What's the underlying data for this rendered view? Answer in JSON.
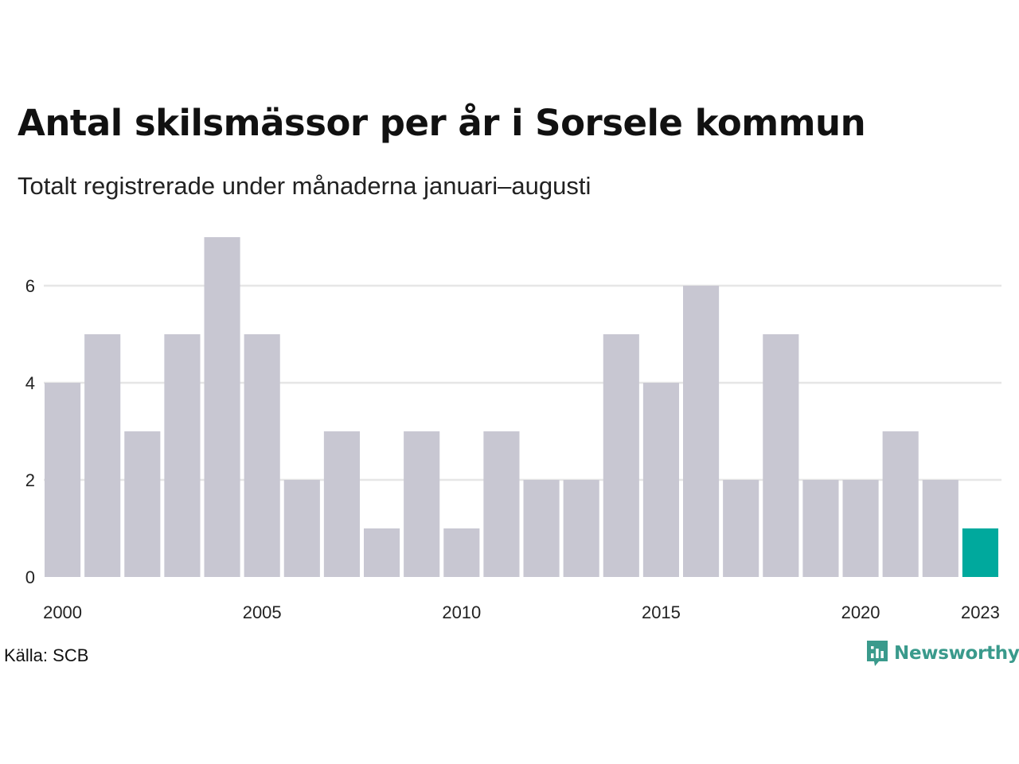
{
  "colors": {
    "bar": "#c8c7d2",
    "highlight": "#00a99d",
    "grid": "#e6e6e6",
    "brand": "#3a9a8c"
  },
  "chart_data": {
    "type": "bar",
    "title": "Antal skilsmässor per år i Sorsele kommun",
    "subtitle": "Totalt registrerade under månaderna januari–augusti",
    "categories": [
      2000,
      2001,
      2002,
      2003,
      2004,
      2005,
      2006,
      2007,
      2008,
      2009,
      2010,
      2011,
      2012,
      2013,
      2014,
      2015,
      2016,
      2017,
      2018,
      2019,
      2020,
      2021,
      2022,
      2023
    ],
    "values": [
      4,
      5,
      3,
      5,
      7,
      5,
      2,
      3,
      1,
      3,
      1,
      3,
      2,
      2,
      5,
      4,
      6,
      2,
      5,
      2,
      2,
      3,
      2,
      1
    ],
    "highlight_category": 2023,
    "x_tick_labels": [
      "2000",
      "2005",
      "2010",
      "2015",
      "2020",
      "2023"
    ],
    "y_ticks": [
      0,
      2,
      4,
      6
    ],
    "ylim": [
      0,
      7
    ],
    "grid": "horizontal"
  },
  "footer": {
    "source": "Källa: SCB",
    "brand": "Newsworthy",
    "brand_icon": "newsworthy-logo-icon"
  }
}
